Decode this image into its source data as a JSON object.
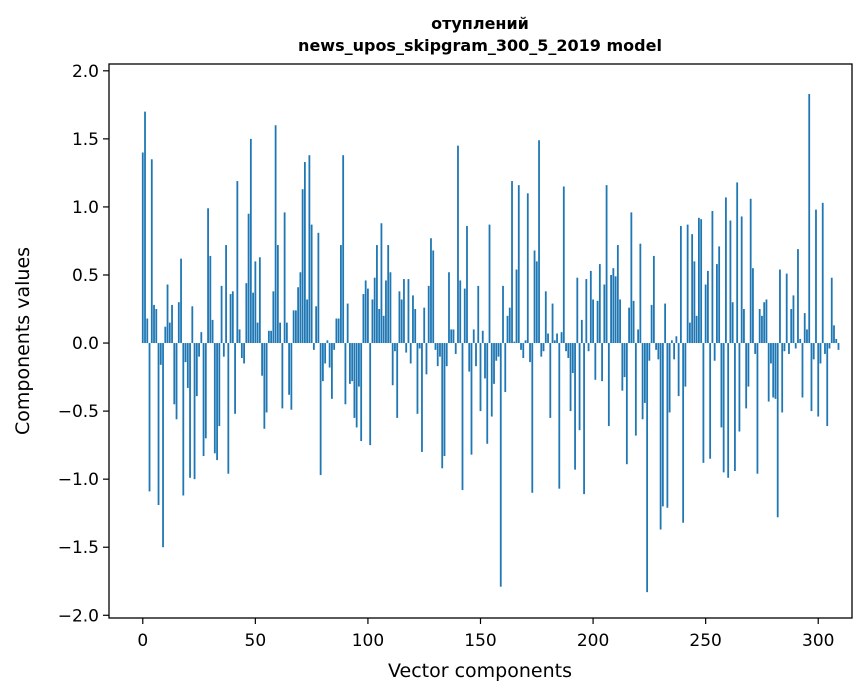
{
  "chart_data": {
    "type": "bar",
    "title_line1": "отуплений",
    "title_line2": "news_upos_skipgram_300_5_2019 model",
    "xlabel": "Vector components",
    "ylabel": "Components values",
    "xlim": [
      -15,
      315
    ],
    "ylim": [
      -2.02,
      2.05
    ],
    "xticks": [
      0,
      50,
      100,
      150,
      200,
      250,
      300
    ],
    "xtick_labels": [
      "0",
      "50",
      "100",
      "150",
      "200",
      "250",
      "300"
    ],
    "yticks": [
      -2.0,
      -1.5,
      -1.0,
      -0.5,
      0.0,
      0.5,
      1.0,
      1.5,
      2.0
    ],
    "ytick_labels": [
      "−2.0",
      "−1.5",
      "−1.0",
      "−0.5",
      "0.0",
      "0.5",
      "1.0",
      "1.5",
      "2.0"
    ],
    "bar_color": "#1f77b4",
    "values": [
      1.4,
      1.7,
      0.18,
      -1.09,
      1.35,
      0.28,
      0.25,
      -1.19,
      -0.16,
      -1.5,
      0.12,
      0.43,
      0.15,
      0.28,
      -0.45,
      -0.56,
      0.3,
      0.62,
      -1.12,
      -0.14,
      -0.33,
      -0.99,
      0.27,
      -1.0,
      -0.39,
      -0.1,
      0.08,
      -0.83,
      -0.7,
      0.99,
      0.64,
      0.17,
      -0.81,
      -0.86,
      -0.61,
      0.42,
      -0.1,
      0.72,
      -0.96,
      0.36,
      0.38,
      -0.52,
      1.19,
      0.1,
      -0.11,
      -0.15,
      0.44,
      0.95,
      1.5,
      0.37,
      0.6,
      0.15,
      0.63,
      -0.24,
      -0.63,
      -0.51,
      0.09,
      0.09,
      0.38,
      1.6,
      0.72,
      0.15,
      -0.48,
      0.96,
      0.15,
      -0.38,
      -0.49,
      0.24,
      0.24,
      0.41,
      0.52,
      1.13,
      1.33,
      0.32,
      1.38,
      0.87,
      -0.05,
      0.27,
      0.81,
      -0.97,
      -0.28,
      -0.15,
      0.02,
      -0.18,
      -0.41,
      -0.05,
      0.18,
      0.18,
      0.72,
      1.38,
      -0.45,
      0.29,
      -0.3,
      -0.28,
      -0.55,
      -0.62,
      -0.32,
      -0.72,
      0.36,
      0.46,
      0.4,
      -0.75,
      0.32,
      0.48,
      0.72,
      0.25,
      0.88,
      0.2,
      0.46,
      0.72,
      0.52,
      -0.31,
      -0.06,
      -0.55,
      0.38,
      0.32,
      0.47,
      -0.07,
      0.47,
      -0.15,
      0.35,
      0.25,
      -0.52,
      -0.04,
      -0.8,
      0.26,
      -0.23,
      0.42,
      0.77,
      0.68,
      -0.05,
      -0.17,
      -0.1,
      -0.92,
      -0.83,
      -0.17,
      0.52,
      0.1,
      0.1,
      -0.08,
      1.45,
      0.46,
      -1.08,
      0.4,
      0.86,
      -0.21,
      -0.82,
      0.1,
      -0.17,
      0.42,
      -0.5,
      0.09,
      -0.26,
      -0.74,
      0.87,
      -0.54,
      -0.3,
      -0.13,
      -0.1,
      -1.79,
      0.42,
      -0.36,
      0.2,
      0.26,
      1.19,
      0.01,
      0.54,
      1.16,
      -0.05,
      -0.11,
      0.02,
      1.1,
      -0.14,
      -1.1,
      0.68,
      0.6,
      1.49,
      -0.1,
      -0.06,
      0.38,
      0.07,
      -0.55,
      0.29,
      0.02,
      0.07,
      -1.07,
      0.08,
      1.15,
      -0.06,
      -0.11,
      -0.5,
      -0.22,
      -0.93,
      0.48,
      -0.64,
      0.17,
      -1.11,
      0.47,
      -0.06,
      0.53,
      0.32,
      -0.27,
      0.31,
      0.58,
      -0.28,
      0.43,
      1.16,
      -0.61,
      0.5,
      0.55,
      0.49,
      0.72,
      0.32,
      -0.35,
      -0.25,
      -0.89,
      0.26,
      0.96,
      0.31,
      -0.68,
      0.1,
      0.73,
      -0.56,
      -0.44,
      -1.83,
      -0.13,
      0.28,
      0.64,
      -0.05,
      -0.12,
      -1.37,
      -1.2,
      0.29,
      -1.21,
      -0.51,
      0.02,
      -0.12,
      0.05,
      -0.39,
      0.86,
      -1.32,
      -0.32,
      0.87,
      0.15,
      0.8,
      0.6,
      0.2,
      0.92,
      0.91,
      -0.88,
      0.43,
      0.53,
      -0.85,
      0.97,
      -0.13,
      0.58,
      0.71,
      -0.62,
      -0.95,
      1.07,
      -0.99,
      0.9,
      0.3,
      -0.94,
      1.18,
      -0.65,
      0.93,
      0.25,
      -0.48,
      -0.32,
      1.06,
      0.55,
      -0.08,
      -0.96,
      0.25,
      0.2,
      0.3,
      0.32,
      -0.43,
      -0.15,
      -0.4,
      -0.41,
      -1.28,
      0.54,
      -0.51,
      -0.06,
      0.51,
      -0.08,
      0.25,
      0.35,
      -0.04,
      0.69,
      0.03,
      -0.4,
      0.22,
      0.1,
      1.83,
      -0.5,
      -0.12,
      0.98,
      -0.54,
      -0.15,
      1.03,
      -0.08,
      -0.61,
      -0.04,
      0.48,
      0.13,
      0.03,
      -0.05
    ]
  }
}
